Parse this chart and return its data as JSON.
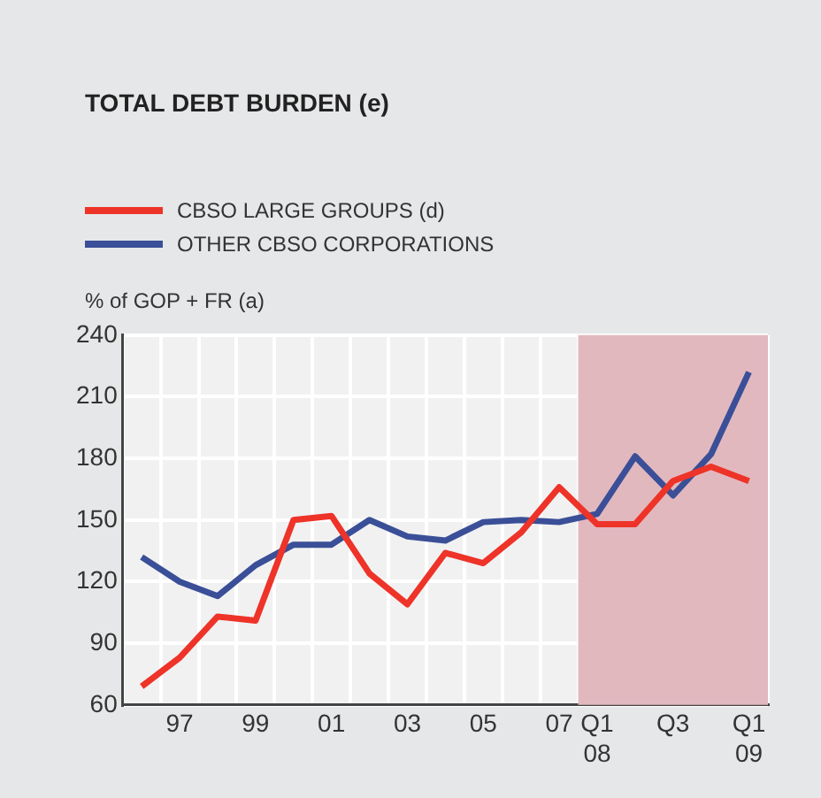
{
  "chart_data": {
    "type": "line",
    "title": "TOTAL DEBT BURDEN (e)",
    "ylabel": "% of GOP + FR (a)",
    "categories": [
      null,
      "97",
      null,
      "99",
      null,
      "01",
      null,
      "03",
      null,
      "05",
      null,
      "07",
      "Q1\n08",
      null,
      "Q3",
      null,
      "Q1\n09"
    ],
    "series": [
      {
        "name": "CBSO LARGE GROUPS (d)",
        "color": "#ee3328",
        "values": [
          69,
          83,
          103,
          101,
          150,
          152,
          124,
          109,
          134,
          129,
          144,
          166,
          148,
          148,
          169,
          176,
          169
        ]
      },
      {
        "name": "OTHER CBSO CORPORATIONS",
        "color": "#3a4f97",
        "values": [
          132,
          120,
          113,
          128,
          138,
          138,
          150,
          142,
          140,
          149,
          150,
          149,
          153,
          181,
          162,
          182,
          222
        ]
      }
    ],
    "ylim": [
      60,
      240
    ],
    "yticks": [
      60,
      90,
      120,
      150,
      180,
      210,
      240
    ],
    "grid": true,
    "legend": "top left",
    "marker": "none",
    "line_style": "solid",
    "bands": [
      {
        "axis": "x",
        "from": "Q1\n08",
        "to": "Q1\n09",
        "color": "#e2b8bf"
      }
    ]
  }
}
